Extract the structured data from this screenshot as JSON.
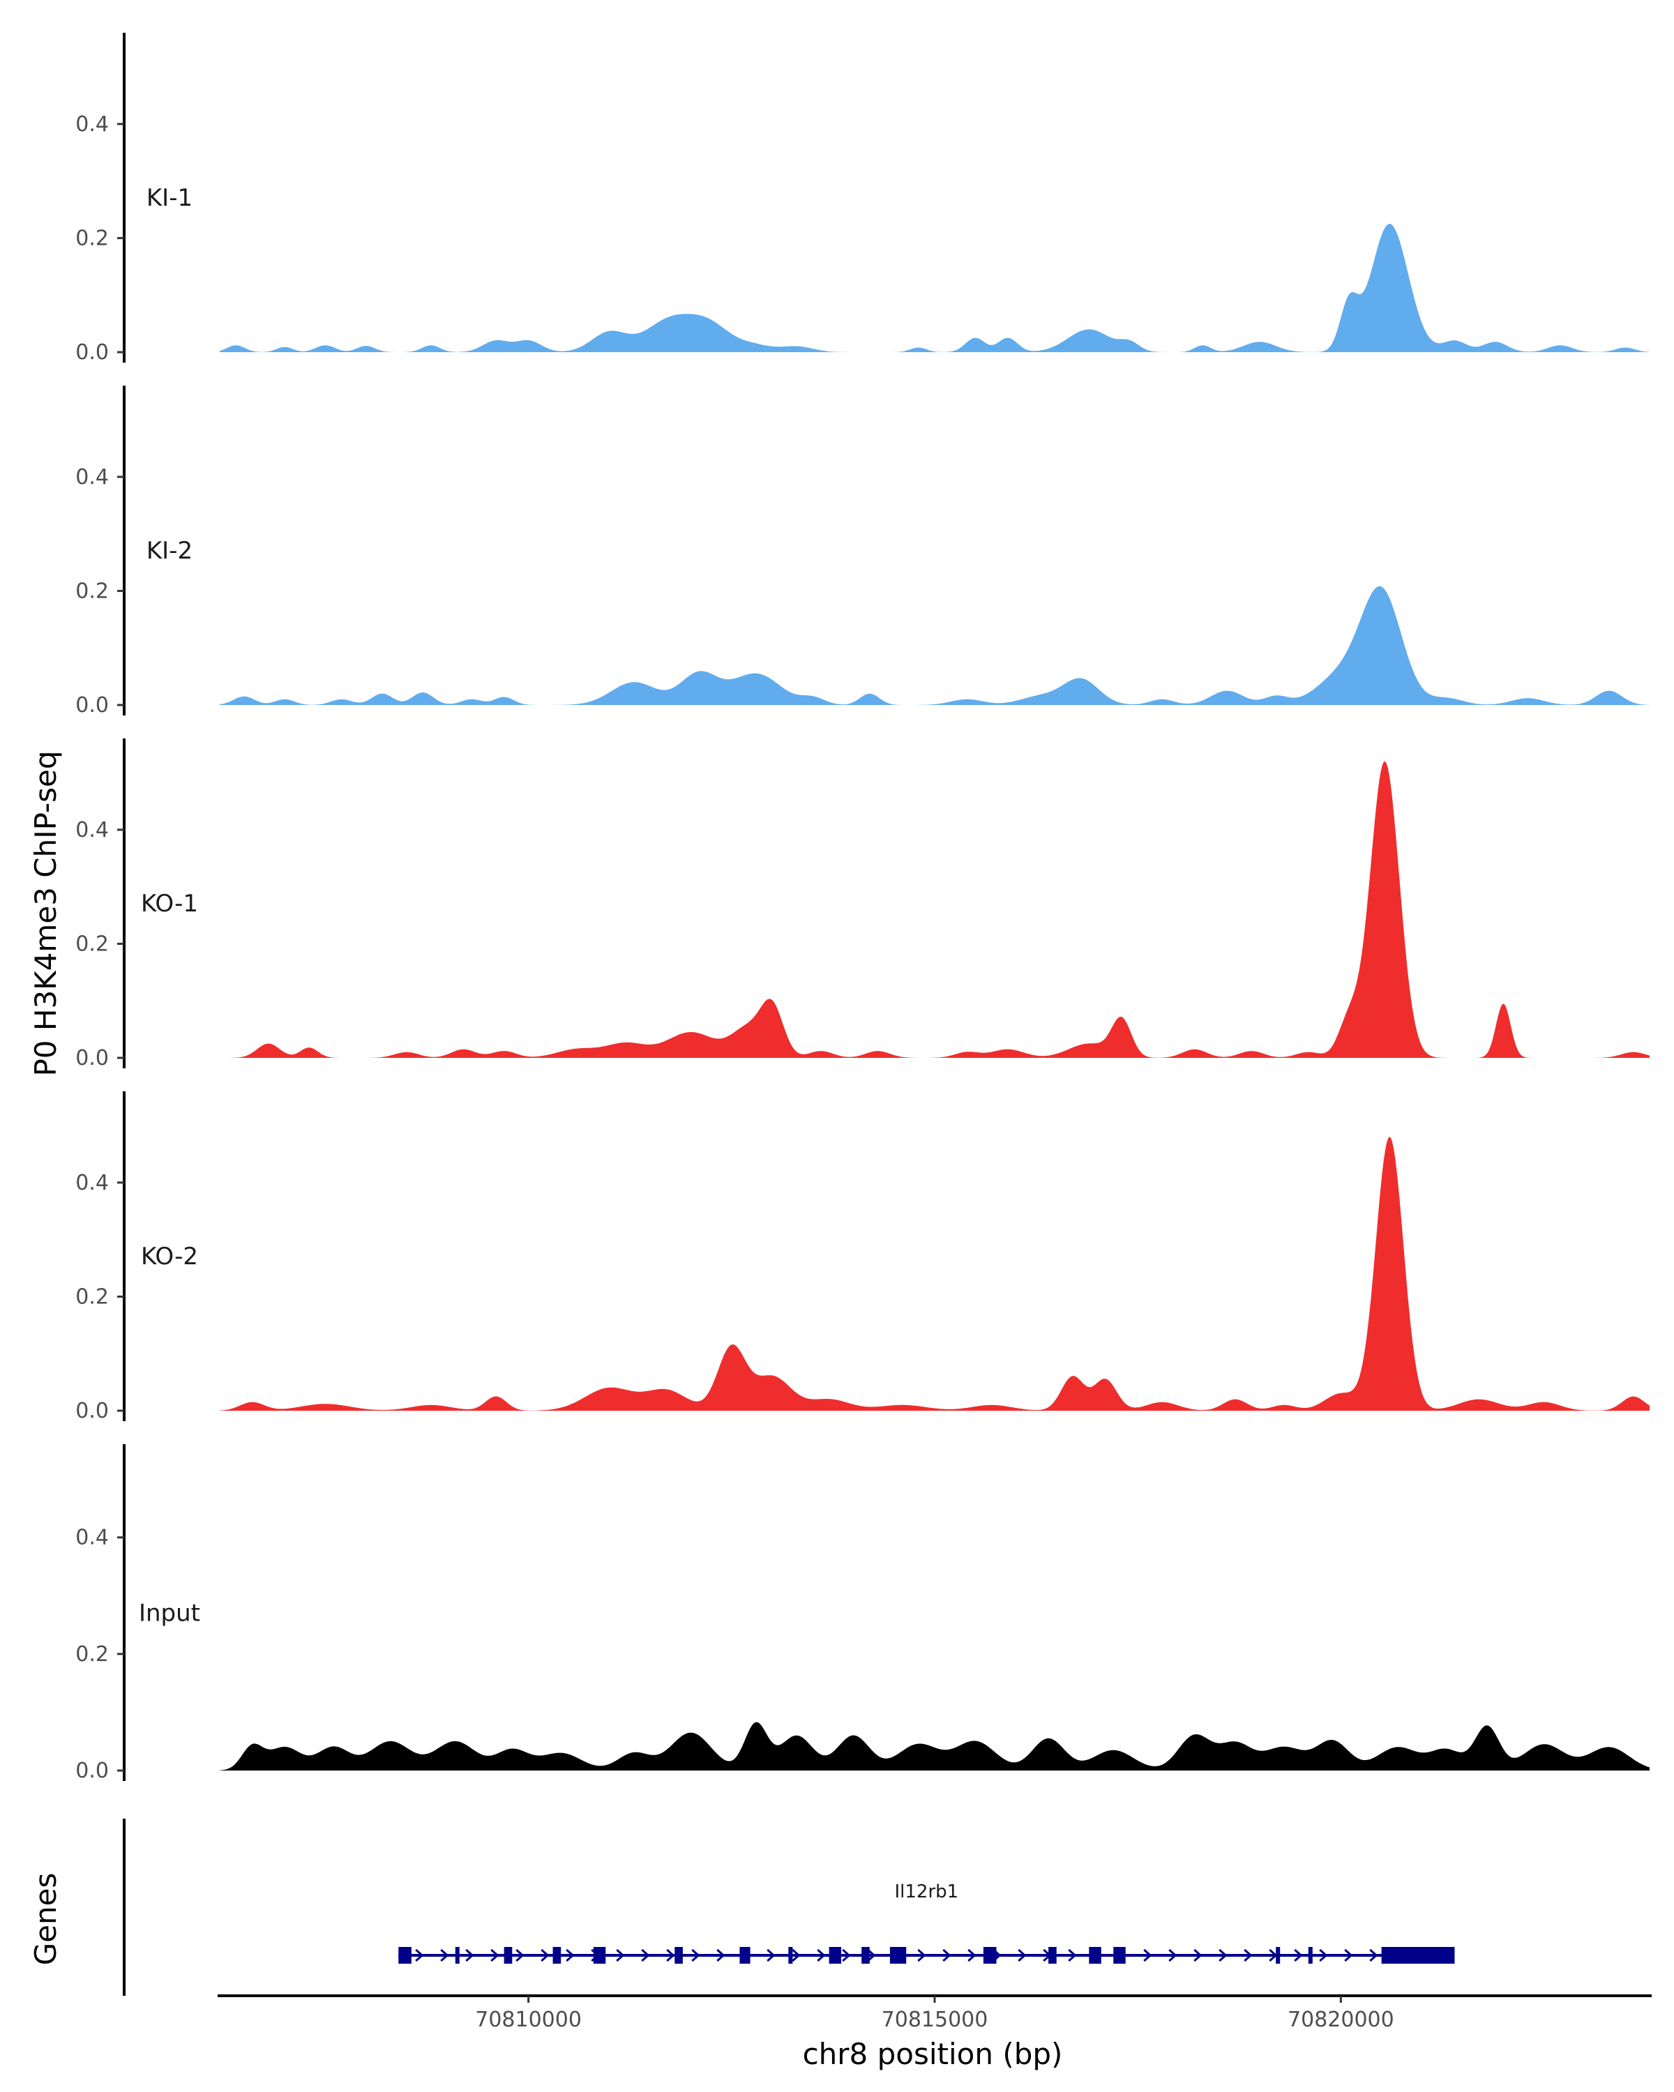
{
  "chart_data": {
    "type": "area",
    "title": "",
    "ylabel": "P0 H3K4me3 ChIP-seq",
    "xlabel": "chr8 position (bp)",
    "ylim": [
      0,
      0.56
    ],
    "xlim": [
      70806200,
      70823800
    ],
    "y_ticks": [
      0.0,
      0.2,
      0.4
    ],
    "y_tick_labels": [
      "0.0",
      "0.2",
      "0.4"
    ],
    "x_ticks": [
      70810000,
      70815000,
      70820000
    ],
    "x_tick_labels": [
      "70810000",
      "70815000",
      "70820000"
    ],
    "tracks": [
      {
        "name": "KI-1",
        "color": "#61acec",
        "peaks": [
          [
            70806400,
            0.012,
            110
          ],
          [
            70807000,
            0.009,
            100
          ],
          [
            70807500,
            0.012,
            120
          ],
          [
            70808000,
            0.011,
            110
          ],
          [
            70808800,
            0.012,
            110
          ],
          [
            70809600,
            0.02,
            160
          ],
          [
            70810000,
            0.02,
            160
          ],
          [
            70811000,
            0.035,
            220
          ],
          [
            70811700,
            0.05,
            280
          ],
          [
            70812200,
            0.05,
            280
          ],
          [
            70812800,
            0.01,
            200
          ],
          [
            70813300,
            0.01,
            200
          ],
          [
            70814800,
            0.008,
            100
          ],
          [
            70815500,
            0.025,
            120
          ],
          [
            70815900,
            0.025,
            120
          ],
          [
            70816900,
            0.04,
            260
          ],
          [
            70817400,
            0.015,
            120
          ],
          [
            70818300,
            0.012,
            100
          ],
          [
            70819000,
            0.018,
            200
          ],
          [
            70820100,
            0.08,
            110
          ],
          [
            70820600,
            0.225,
            230
          ],
          [
            70821400,
            0.02,
            150
          ],
          [
            70821900,
            0.018,
            150
          ],
          [
            70822700,
            0.012,
            150
          ],
          [
            70823500,
            0.008,
            120
          ]
        ]
      },
      {
        "name": "KI-2",
        "color": "#61acec",
        "peaks": [
          [
            70806500,
            0.015,
            130
          ],
          [
            70807000,
            0.01,
            120
          ],
          [
            70807700,
            0.01,
            130
          ],
          [
            70808200,
            0.02,
            130
          ],
          [
            70808700,
            0.022,
            130
          ],
          [
            70809300,
            0.01,
            130
          ],
          [
            70809700,
            0.014,
            120
          ],
          [
            70811300,
            0.04,
            280
          ],
          [
            70812100,
            0.055,
            230
          ],
          [
            70812800,
            0.055,
            300
          ],
          [
            70813500,
            0.012,
            150
          ],
          [
            70814200,
            0.02,
            120
          ],
          [
            70815400,
            0.01,
            200
          ],
          [
            70816300,
            0.015,
            250
          ],
          [
            70816800,
            0.045,
            220
          ],
          [
            70817800,
            0.01,
            150
          ],
          [
            70818600,
            0.025,
            200
          ],
          [
            70819200,
            0.015,
            150
          ],
          [
            70820000,
            0.05,
            300
          ],
          [
            70820500,
            0.195,
            250
          ],
          [
            70821300,
            0.012,
            200
          ],
          [
            70822300,
            0.012,
            200
          ],
          [
            70823300,
            0.025,
            160
          ]
        ]
      },
      {
        "name": "KO-1",
        "color": "#ef2d2d",
        "peaks": [
          [
            70806800,
            0.025,
            140
          ],
          [
            70807300,
            0.018,
            110
          ],
          [
            70808500,
            0.01,
            150
          ],
          [
            70809200,
            0.015,
            150
          ],
          [
            70809700,
            0.012,
            150
          ],
          [
            70810600,
            0.015,
            250
          ],
          [
            70811200,
            0.025,
            250
          ],
          [
            70812000,
            0.045,
            300
          ],
          [
            70812700,
            0.05,
            200
          ],
          [
            70813000,
            0.085,
            140
          ],
          [
            70813600,
            0.012,
            150
          ],
          [
            70814300,
            0.012,
            150
          ],
          [
            70815400,
            0.01,
            150
          ],
          [
            70815900,
            0.015,
            200
          ],
          [
            70816900,
            0.025,
            250
          ],
          [
            70817300,
            0.065,
            120
          ],
          [
            70818200,
            0.015,
            150
          ],
          [
            70818900,
            0.012,
            150
          ],
          [
            70819600,
            0.01,
            150
          ],
          [
            70820100,
            0.065,
            130
          ],
          [
            70820540,
            0.52,
            180
          ],
          [
            70822000,
            0.095,
            90
          ],
          [
            70823600,
            0.01,
            150
          ]
        ]
      },
      {
        "name": "KO-2",
        "color": "#ef2d2d",
        "peaks": [
          [
            70806600,
            0.015,
            150
          ],
          [
            70807500,
            0.012,
            300
          ],
          [
            70808800,
            0.01,
            250
          ],
          [
            70809600,
            0.025,
            130
          ],
          [
            70811000,
            0.04,
            300
          ],
          [
            70811700,
            0.035,
            250
          ],
          [
            70812500,
            0.11,
            170
          ],
          [
            70813000,
            0.06,
            230
          ],
          [
            70813700,
            0.02,
            250
          ],
          [
            70814600,
            0.01,
            300
          ],
          [
            70815700,
            0.01,
            250
          ],
          [
            70816700,
            0.06,
            140
          ],
          [
            70817100,
            0.055,
            140
          ],
          [
            70817800,
            0.015,
            200
          ],
          [
            70818700,
            0.02,
            150
          ],
          [
            70819300,
            0.01,
            150
          ],
          [
            70820000,
            0.03,
            200
          ],
          [
            70820600,
            0.48,
            170
          ],
          [
            70821700,
            0.02,
            250
          ],
          [
            70822500,
            0.015,
            200
          ],
          [
            70823600,
            0.025,
            140
          ]
        ]
      },
      {
        "name": "Input",
        "color": "#000000",
        "peaks": [
          [
            70806600,
            0.04,
            130
          ],
          [
            70807000,
            0.04,
            200
          ],
          [
            70807600,
            0.04,
            200
          ],
          [
            70808300,
            0.05,
            250
          ],
          [
            70809100,
            0.05,
            250
          ],
          [
            70809800,
            0.035,
            200
          ],
          [
            70810400,
            0.03,
            250
          ],
          [
            70811300,
            0.03,
            200
          ],
          [
            70812000,
            0.065,
            250
          ],
          [
            70812800,
            0.08,
            140
          ],
          [
            70813300,
            0.06,
            200
          ],
          [
            70814000,
            0.06,
            200
          ],
          [
            70814800,
            0.045,
            250
          ],
          [
            70815500,
            0.05,
            250
          ],
          [
            70816400,
            0.055,
            200
          ],
          [
            70817200,
            0.035,
            250
          ],
          [
            70818200,
            0.06,
            200
          ],
          [
            70818700,
            0.045,
            200
          ],
          [
            70819300,
            0.04,
            250
          ],
          [
            70819900,
            0.05,
            200
          ],
          [
            70820700,
            0.04,
            250
          ],
          [
            70821300,
            0.035,
            200
          ],
          [
            70821800,
            0.075,
            150
          ],
          [
            70822500,
            0.045,
            250
          ],
          [
            70823300,
            0.04,
            250
          ]
        ]
      }
    ],
    "gene_track": {
      "label": "Genes",
      "gene": "Il12rb1",
      "strand": "+",
      "start": 70808400,
      "end": 70821400,
      "color": "#00008b",
      "exons": [
        [
          70808400,
          70808560
        ],
        [
          70809100,
          70809150
        ],
        [
          70809700,
          70809800
        ],
        [
          70810300,
          70810400
        ],
        [
          70810800,
          70810950
        ],
        [
          70811800,
          70811900
        ],
        [
          70812600,
          70812730
        ],
        [
          70813200,
          70813250
        ],
        [
          70813700,
          70813850
        ],
        [
          70814100,
          70814200
        ],
        [
          70814450,
          70814650
        ],
        [
          70815600,
          70815760
        ],
        [
          70816400,
          70816500
        ],
        [
          70816900,
          70817050
        ],
        [
          70817200,
          70817350
        ],
        [
          70819200,
          70819250
        ],
        [
          70819600,
          70819650
        ],
        [
          70820500,
          70821400
        ]
      ]
    }
  }
}
